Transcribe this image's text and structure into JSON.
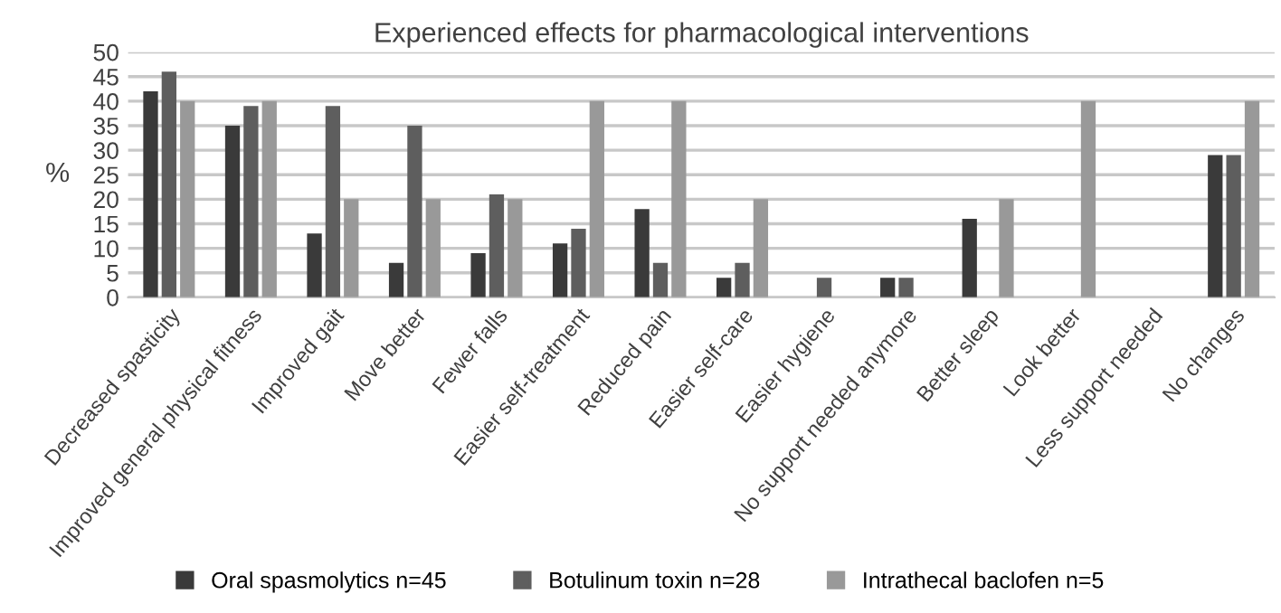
{
  "chart_data": {
    "type": "bar",
    "title": "Experienced effects for pharmacological interventions",
    "ylabel": "%",
    "categories": [
      "Decreased spasticity",
      "Improved general physical fitness",
      "Improved gait",
      "Move better",
      "Fewer falls",
      "Easier self-treatment",
      "Reduced pain",
      "Easier self-care",
      "Easier hygiene",
      "No support needed anymore",
      "Better sleep",
      "Look better",
      "Less support needed",
      "No changes"
    ],
    "series": [
      {
        "name": "Oral spasmolytics n=45",
        "color": "#3a3a3a",
        "values": [
          42,
          35,
          13,
          7,
          9,
          11,
          18,
          4,
          0,
          4,
          16,
          0,
          0,
          29
        ]
      },
      {
        "name": "Botulinum toxin n=28",
        "color": "#5e5e5e",
        "values": [
          46,
          39,
          39,
          35,
          21,
          14,
          7,
          7,
          4,
          4,
          0,
          0,
          0,
          29
        ]
      },
      {
        "name": "Intrathecal baclofen n=5",
        "color": "#999999",
        "values": [
          40,
          40,
          20,
          20,
          20,
          40,
          40,
          20,
          0,
          0,
          20,
          40,
          0,
          40
        ]
      }
    ],
    "ylim": [
      0,
      50
    ],
    "yticks": [
      0,
      5,
      10,
      15,
      20,
      25,
      30,
      35,
      40,
      45,
      50
    ],
    "grid": "y",
    "legend": "bottom"
  }
}
